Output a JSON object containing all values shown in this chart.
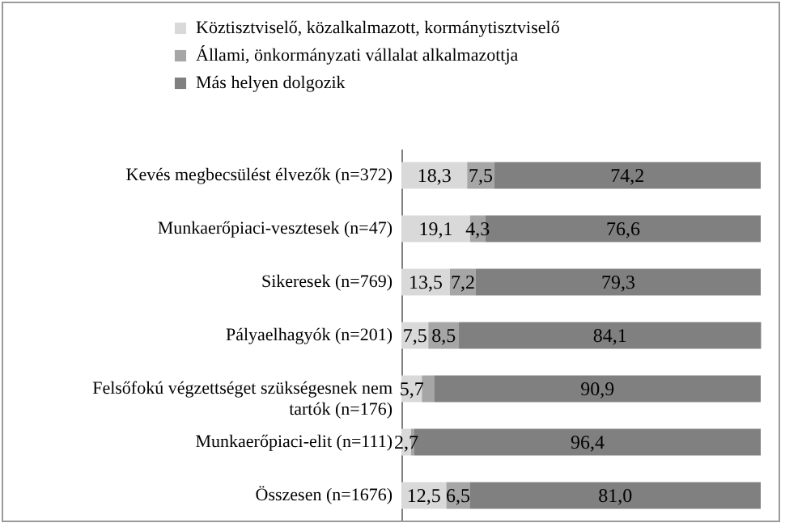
{
  "chart_data": {
    "type": "bar",
    "orientation": "horizontal",
    "stacked": true,
    "legend": "top",
    "categories": [
      "Kevés megbecsülést élvezők (n=372)",
      "Munkaerőpiaci-vesztesek (n=47)",
      "Sikeresek (n=769)",
      "Pályaelhagyók (n=201)",
      "Felsőfokú végzettséget szükségesnek nem tartók (n=176)",
      "Munkaerőpiaci-elit (n=111)",
      "Összesen (n=1676)"
    ],
    "xlim": [
      0,
      100
    ],
    "tick_labels": "y",
    "series": [
      {
        "name": "Köztisztviselő, közalkalmazott, kormánytisztviselő",
        "color": "#d9d9d9",
        "values": [
          18.3,
          19.1,
          13.5,
          7.5,
          5.7,
          2.7,
          12.5
        ],
        "value_labels": [
          "18,3",
          "19,1",
          "13,5",
          "7,5",
          "5,7",
          "2,7",
          "12,5"
        ]
      },
      {
        "name": "Állami, önkormányzati vállalat alkalmazottja",
        "color": "#a6a6a6",
        "values": [
          7.5,
          4.3,
          7.2,
          8.5,
          3.4,
          0.9,
          6.5
        ],
        "value_labels": [
          "7,5",
          "4,3",
          "7,2",
          "8,5",
          null,
          null,
          "6,5"
        ]
      },
      {
        "name": "Más helyen dolgozik",
        "color": "#808080",
        "values": [
          74.2,
          76.6,
          79.3,
          84.1,
          90.9,
          96.4,
          81.0
        ],
        "value_labels": [
          "74,2",
          "76,6",
          "79,3",
          "84,1",
          "90,9",
          "96,4",
          "81,0"
        ]
      }
    ]
  }
}
